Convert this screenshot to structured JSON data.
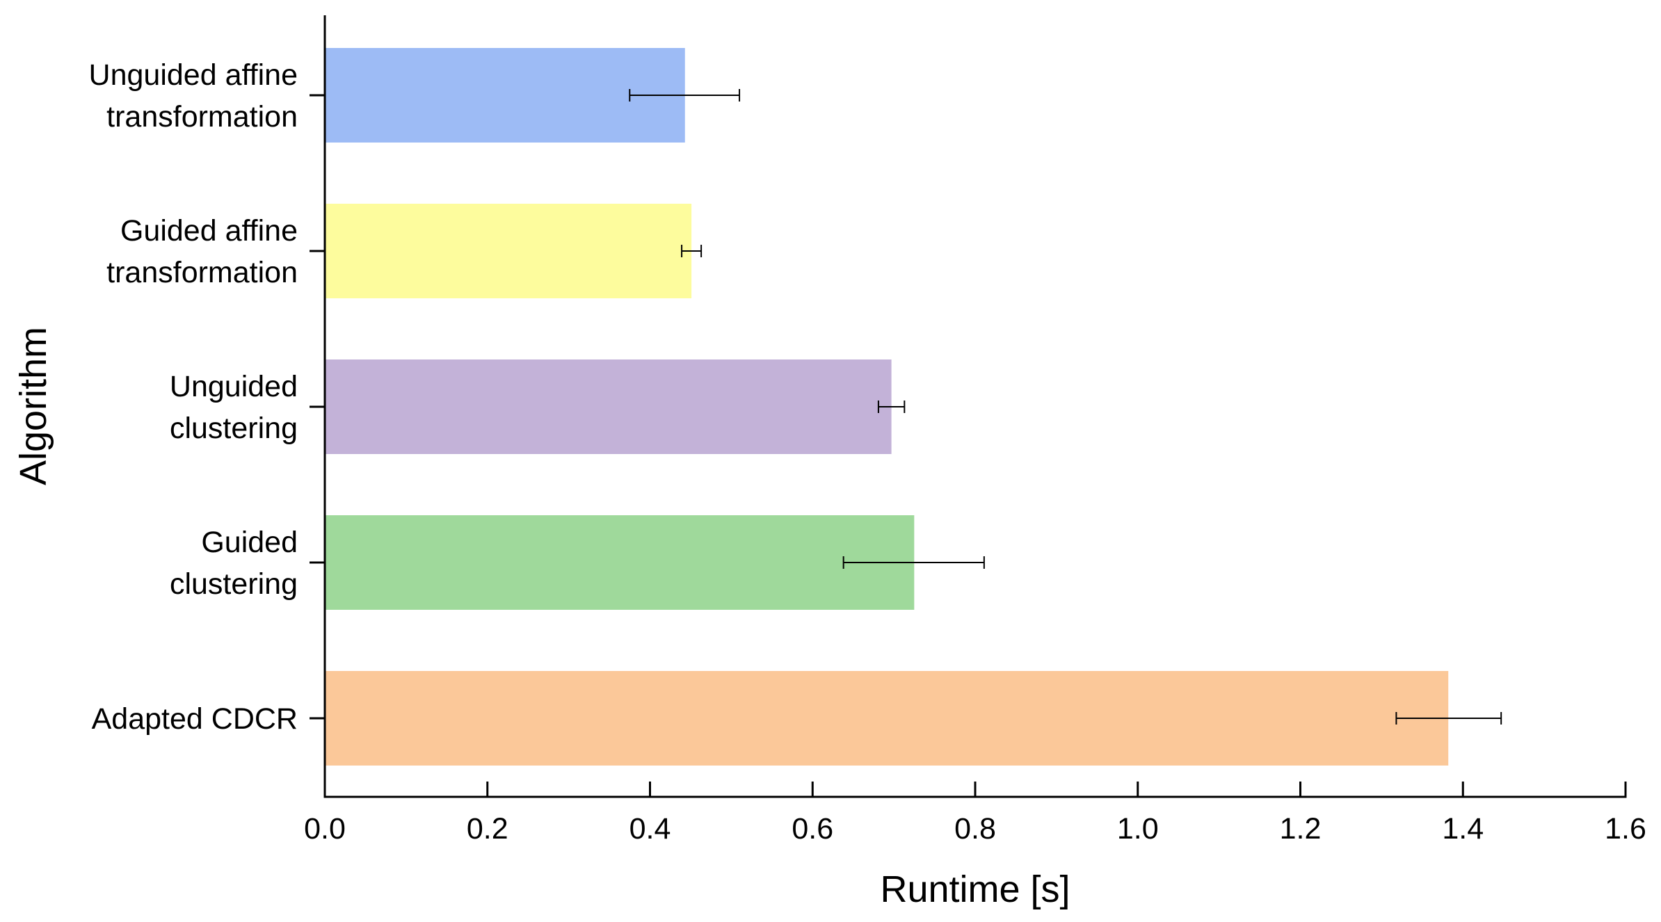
{
  "chart_data": {
    "type": "bar",
    "orientation": "horizontal",
    "title": "",
    "xlabel": "Runtime [s]",
    "ylabel": "Algorithm",
    "xlim": [
      0.0,
      1.6
    ],
    "xticks": [
      "0.0",
      "0.2",
      "0.4",
      "0.6",
      "0.8",
      "1.0",
      "1.2",
      "1.4",
      "1.6"
    ],
    "grid": false,
    "legend": "none",
    "categories": [
      {
        "lines": [
          "Unguided affine",
          "transformation"
        ],
        "value": 0.443,
        "err_low": 0.375,
        "err_high": 0.51,
        "color": "#9dbbf5"
      },
      {
        "lines": [
          "Guided affine",
          "transformation"
        ],
        "value": 0.451,
        "err_low": 0.439,
        "err_high": 0.463,
        "color": "#fdfc9d"
      },
      {
        "lines": [
          "Unguided",
          "clustering"
        ],
        "value": 0.697,
        "err_low": 0.681,
        "err_high": 0.713,
        "color": "#c3b2d8"
      },
      {
        "lines": [
          "Guided",
          "clustering"
        ],
        "value": 0.725,
        "err_low": 0.638,
        "err_high": 0.811,
        "color": "#9fd99b"
      },
      {
        "lines": [
          "Adapted CDCR"
        ],
        "value": 1.382,
        "err_low": 1.318,
        "err_high": 1.447,
        "color": "#fbc899"
      }
    ]
  }
}
